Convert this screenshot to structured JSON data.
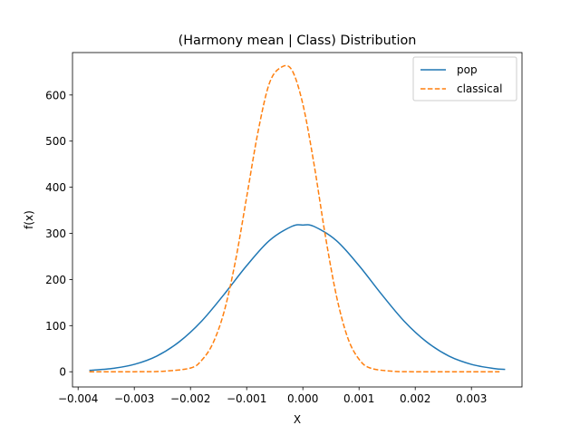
{
  "chart_data": {
    "type": "line",
    "title": "(Harmony mean | Class) Distribution",
    "xlabel": "X",
    "ylabel": "f(x)",
    "xlim": [
      -0.0041,
      0.0039
    ],
    "ylim": [
      -33,
      692
    ],
    "xticks": [
      -0.004,
      -0.003,
      -0.002,
      -0.001,
      0.0,
      0.001,
      0.002,
      0.003
    ],
    "xtick_labels": [
      "−0.004",
      "−0.003",
      "−0.002",
      "−0.001",
      "0.000",
      "0.001",
      "0.002",
      "0.003"
    ],
    "yticks": [
      0,
      100,
      200,
      300,
      400,
      500,
      600
    ],
    "ytick_labels": [
      "0",
      "100",
      "200",
      "300",
      "400",
      "500",
      "600"
    ],
    "grid": false,
    "legend_position": "top-right",
    "series": [
      {
        "name": "pop",
        "color": "#1f77b4",
        "style": "solid",
        "x": [
          -0.0038,
          -0.0034,
          -0.003,
          -0.0026,
          -0.0022,
          -0.0018,
          -0.0014,
          -0.001,
          -0.0006,
          -0.0002,
          0.0,
          0.0002,
          0.0006,
          0.001,
          0.0014,
          0.0018,
          0.0022,
          0.0026,
          0.003,
          0.0034,
          0.0036
        ],
        "y": [
          3,
          7,
          16,
          34,
          65,
          110,
          168,
          230,
          284,
          315,
          318,
          315,
          284,
          230,
          168,
          110,
          65,
          34,
          16,
          7,
          5
        ]
      },
      {
        "name": "classical",
        "color": "#ff7f0e",
        "style": "dashed",
        "x": [
          -0.0038,
          -0.003,
          -0.0025,
          -0.002,
          -0.0018,
          -0.0016,
          -0.0014,
          -0.0012,
          -0.001,
          -0.0008,
          -0.0006,
          -0.0004,
          -0.0002,
          0.0,
          0.0002,
          0.0004,
          0.0006,
          0.0008,
          0.001,
          0.0012,
          0.0016,
          0.002,
          0.0025,
          0.003,
          0.0035
        ],
        "y": [
          0,
          0,
          1,
          8,
          25,
          62,
          131,
          240,
          379,
          519,
          624,
          659,
          655,
          580,
          449,
          295,
          163,
          73,
          27,
          8,
          1,
          0,
          0,
          0,
          0
        ]
      }
    ]
  }
}
